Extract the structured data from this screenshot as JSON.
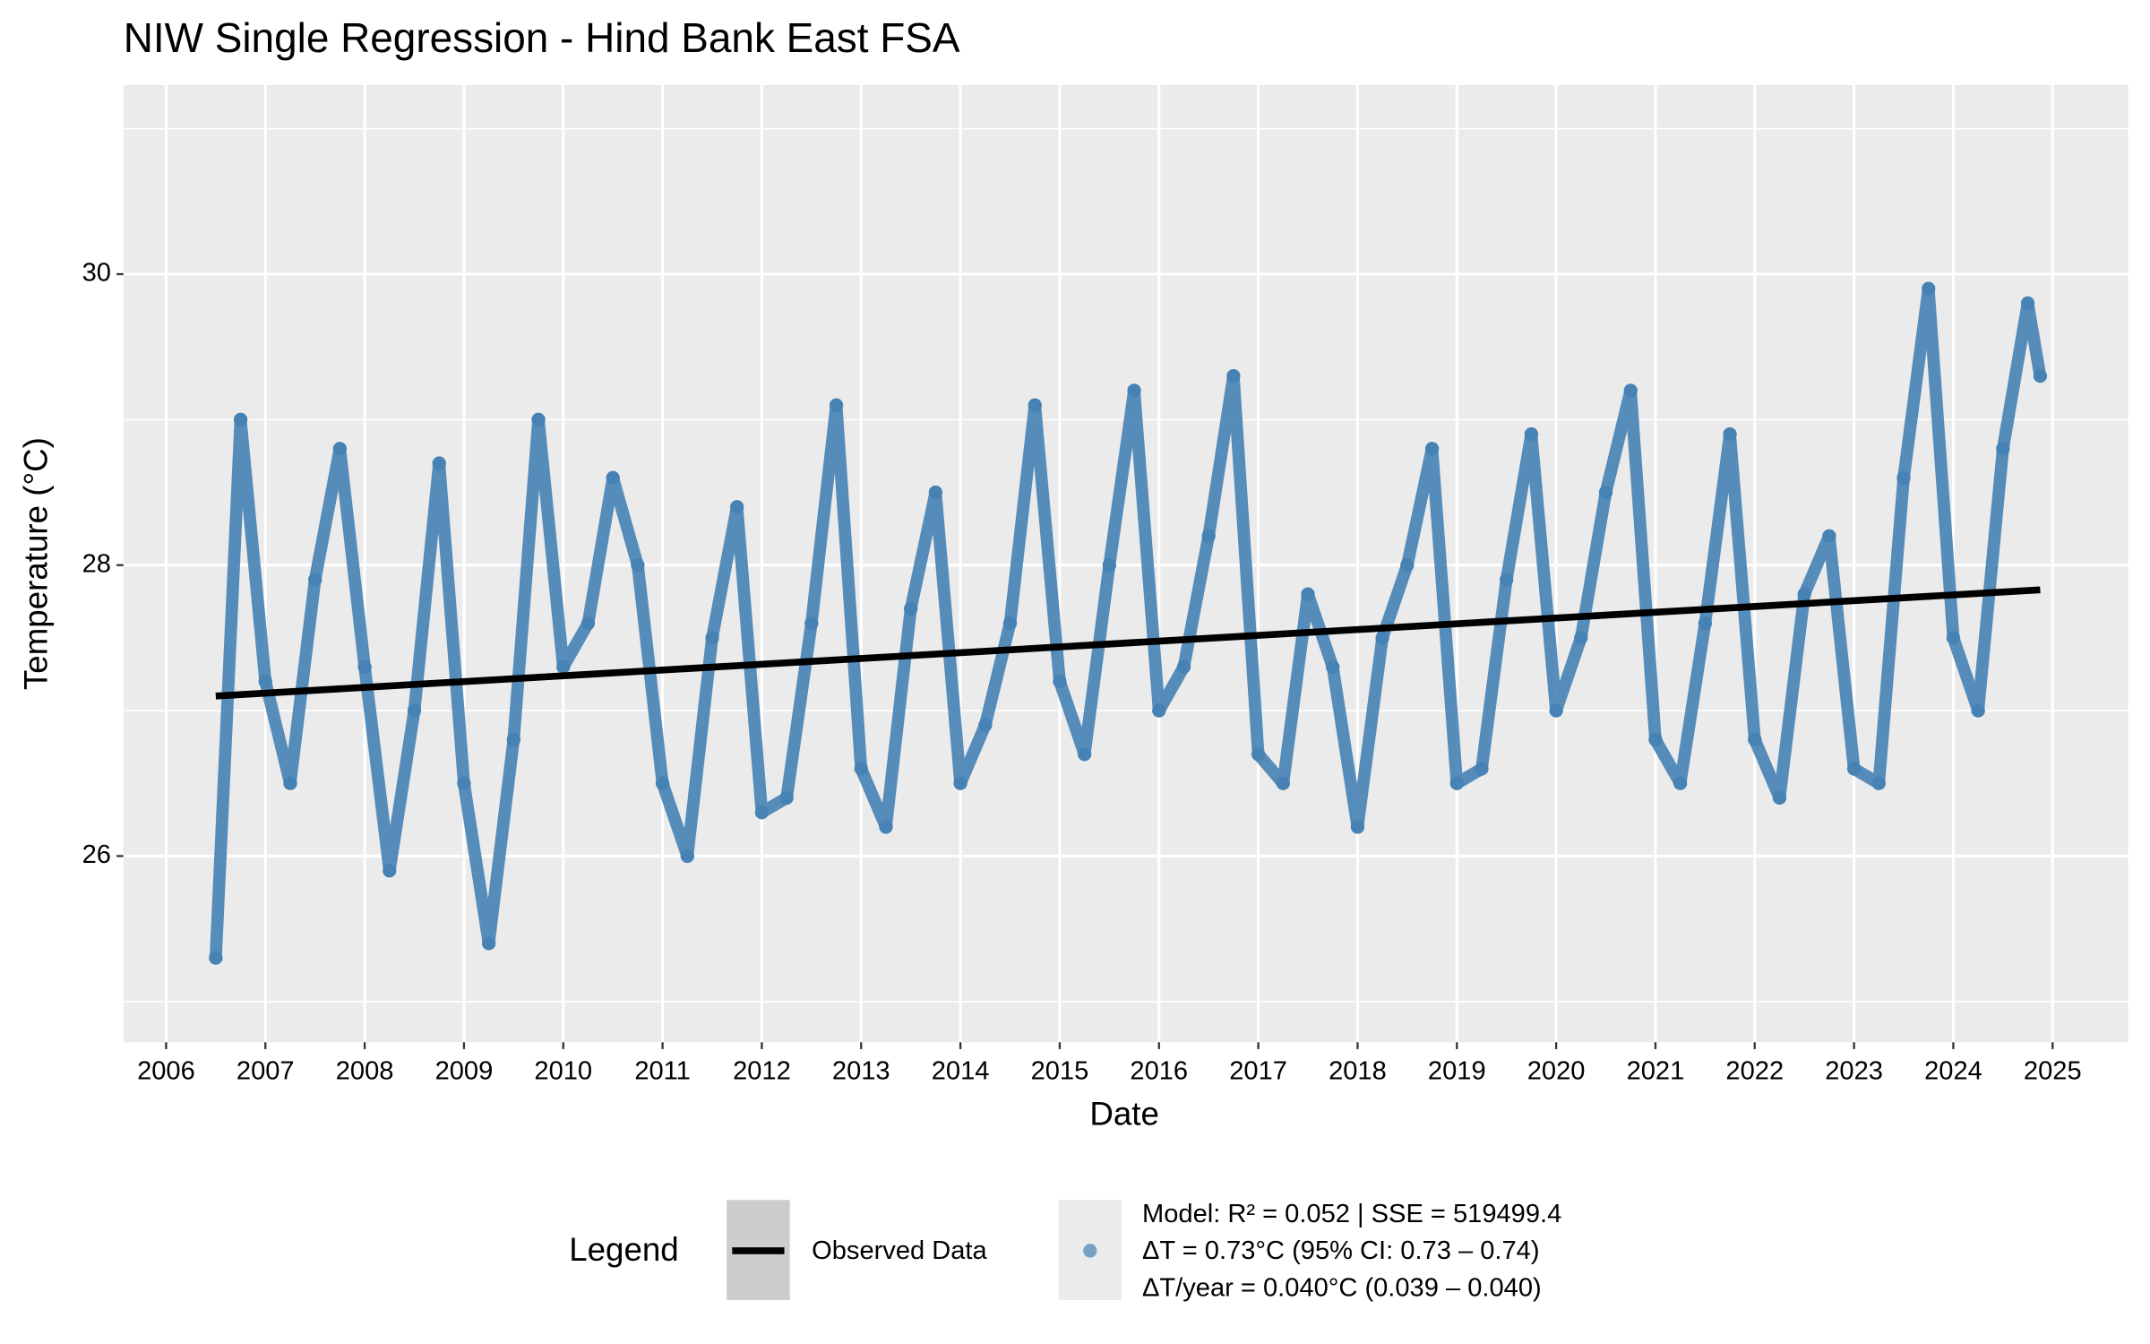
{
  "chart_data": {
    "type": "scatter",
    "title": "NIW Single Regression - Hind Bank East FSA",
    "x_label": "Date",
    "y_label": "Temperature (°C)",
    "xlim": [
      2005.57,
      2025.76
    ],
    "ylim": [
      24.72,
      31.3
    ],
    "xticks": [
      2006,
      2007,
      2008,
      2009,
      2010,
      2011,
      2012,
      2013,
      2014,
      2015,
      2016,
      2017,
      2018,
      2019,
      2020,
      2021,
      2022,
      2023,
      2024,
      2025
    ],
    "yticks": [
      26,
      28,
      30
    ],
    "y_minor_ticks": [
      25,
      27,
      29,
      31
    ],
    "grid": true,
    "legend_title": "Legend",
    "legend_position": "bottom",
    "series": [
      {
        "name": "Observed Data",
        "kind": "line",
        "color": "#000000",
        "x": [
          2006.5,
          2024.875
        ],
        "values": [
          27.1,
          27.83
        ]
      },
      {
        "name": [
          "Model: R² = 0.052 | SSE = 519499.4",
          "ΔT = 0.73°C (95% CI: 0.73 – 0.74)",
          "ΔT/year = 0.040°C (0.039 – 0.040)"
        ],
        "kind": "points",
        "color": "#4682b4",
        "x": [
          2006.5,
          2006.75,
          2007.0,
          2007.25,
          2007.5,
          2007.75,
          2008.0,
          2008.25,
          2008.5,
          2008.75,
          2009.0,
          2009.25,
          2009.5,
          2009.75,
          2010.0,
          2010.25,
          2010.5,
          2010.75,
          2011.0,
          2011.25,
          2011.5,
          2011.75,
          2012.0,
          2012.25,
          2012.5,
          2012.75,
          2013.0,
          2013.25,
          2013.5,
          2013.75,
          2014.0,
          2014.25,
          2014.5,
          2014.75,
          2015.0,
          2015.25,
          2015.5,
          2015.75,
          2016.0,
          2016.25,
          2016.5,
          2016.75,
          2017.0,
          2017.25,
          2017.5,
          2017.75,
          2018.0,
          2018.25,
          2018.5,
          2018.75,
          2019.0,
          2019.25,
          2019.5,
          2019.75,
          2020.0,
          2020.25,
          2020.5,
          2020.75,
          2021.0,
          2021.25,
          2021.5,
          2021.75,
          2022.0,
          2022.25,
          2022.5,
          2022.75,
          2023.0,
          2023.25,
          2023.5,
          2023.75,
          2024.0,
          2024.25,
          2024.5,
          2024.75,
          2024.875
        ],
        "values": [
          25.3,
          29.0,
          27.2,
          26.5,
          27.9,
          28.8,
          27.3,
          25.9,
          27.0,
          28.7,
          26.5,
          25.4,
          26.8,
          29.0,
          27.3,
          27.6,
          28.6,
          28.0,
          26.5,
          26.0,
          27.5,
          28.4,
          26.3,
          26.4,
          27.6,
          29.1,
          26.6,
          26.2,
          27.7,
          28.5,
          26.5,
          26.9,
          27.6,
          29.1,
          27.2,
          26.7,
          28.0,
          29.2,
          27.0,
          27.3,
          28.2,
          29.3,
          26.7,
          26.5,
          27.8,
          27.3,
          26.2,
          27.5,
          28.0,
          28.8,
          26.5,
          26.6,
          27.9,
          28.9,
          27.0,
          27.5,
          28.5,
          29.2,
          26.8,
          26.5,
          27.6,
          28.9,
          26.8,
          26.4,
          27.8,
          28.2,
          26.6,
          26.5,
          28.6,
          29.9,
          27.5,
          27.0,
          28.8,
          29.8,
          29.3
        ]
      }
    ]
  }
}
